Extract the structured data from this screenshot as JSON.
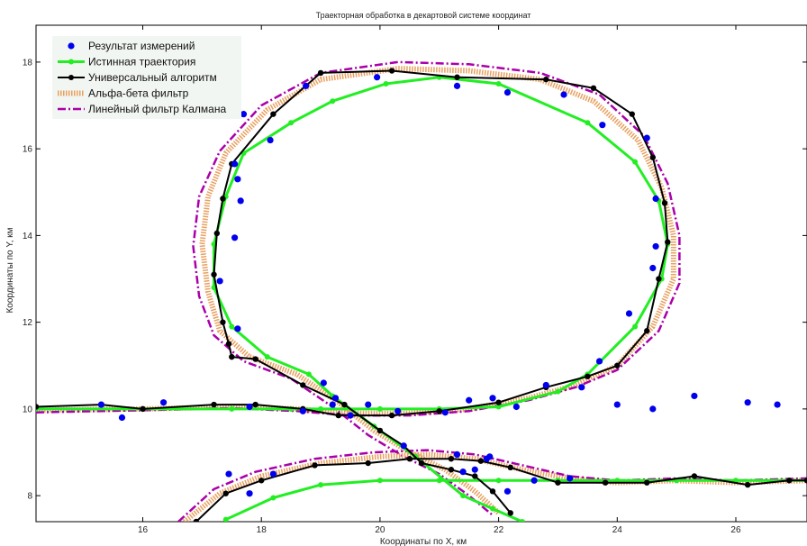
{
  "chart_data": {
    "type": "line",
    "title": "Траекторная обработка в декартовой системе координат",
    "xlabel": "Координаты по X, км",
    "ylabel": "Координаты по Y, км",
    "xlim": [
      14.2,
      27.2
    ],
    "ylim": [
      7.4,
      18.85
    ],
    "xticks": [
      16,
      18,
      20,
      22,
      24,
      26
    ],
    "yticks": [
      8,
      10,
      12,
      14,
      16,
      18
    ],
    "grid": false,
    "legend": "top-left",
    "series": [
      {
        "name": "Результат измерений",
        "style": "markers",
        "color": "#0000ee",
        "x": [
          15.3,
          15.65,
          16.35,
          17.8,
          18.7,
          19.2,
          19.5,
          19.8,
          20.3,
          21.1,
          21.5,
          21.9,
          22.3,
          22.8,
          23.4,
          24.0,
          24.6,
          25.3,
          26.2,
          26.7,
          17.6,
          17.3,
          17.55,
          17.65,
          17.6,
          17.55,
          17.7,
          18.15,
          18.75,
          19.95,
          21.3,
          22.15,
          23.1,
          23.75,
          24.5,
          24.65,
          24.65,
          24.6,
          24.2,
          23.7,
          19.05,
          19.25,
          20.4,
          21.4,
          21.3,
          21.6,
          21.85,
          21.8,
          22.15,
          17.45,
          17.8,
          18.2,
          22.6,
          23.2
        ],
        "y": [
          10.1,
          9.8,
          10.15,
          10.05,
          9.95,
          10.1,
          9.85,
          10.1,
          9.95,
          9.92,
          10.2,
          10.25,
          10.05,
          10.55,
          10.5,
          10.1,
          10.0,
          10.3,
          10.15,
          10.1,
          11.85,
          12.95,
          13.95,
          14.8,
          15.3,
          15.65,
          16.8,
          16.2,
          17.45,
          17.65,
          17.45,
          17.3,
          17.25,
          16.55,
          16.25,
          14.85,
          13.75,
          13.25,
          12.2,
          11.1,
          10.6,
          10.25,
          9.15,
          8.55,
          8.95,
          8.6,
          8.9,
          8.85,
          8.1,
          8.5,
          8.05,
          8.5,
          8.35,
          8.4
        ]
      },
      {
        "name": "Истинная траектория",
        "style": "line-markers",
        "color": "#22ee22",
        "x": [
          14.2,
          16.0,
          17.5,
          18.5,
          19.0,
          20.0,
          21.0,
          22.0,
          23.0,
          23.5,
          24.3,
          24.75,
          24.85,
          24.7,
          24.3,
          23.5,
          22.0,
          21.0,
          20.1,
          19.2,
          18.5,
          17.7,
          17.4,
          17.2,
          17.2,
          17.5,
          18.1,
          18.8,
          19.2,
          19.9,
          20.6,
          21.4,
          21.9,
          22.4
        ],
        "y": [
          10.0,
          10.0,
          10.0,
          10.0,
          10.0,
          10.0,
          10.0,
          10.05,
          10.4,
          10.8,
          11.9,
          13.0,
          13.8,
          14.8,
          15.7,
          16.6,
          17.5,
          17.65,
          17.5,
          17.1,
          16.6,
          15.9,
          14.9,
          13.8,
          12.8,
          11.9,
          11.2,
          10.8,
          10.3,
          9.6,
          8.9,
          8.0,
          7.7,
          7.4
        ]
      },
      {
        "name": "Универсальный алгоритм",
        "style": "line-markers",
        "color": "#000000",
        "x": [
          14.2,
          15.3,
          16.0,
          17.2,
          17.9,
          18.7,
          19.3,
          20.2,
          21.0,
          22.0,
          22.8,
          23.5,
          24.0,
          24.5,
          24.7,
          24.85,
          24.8,
          24.6,
          24.25,
          23.6,
          22.8,
          21.3,
          20.2,
          19.0,
          18.2,
          17.5,
          17.35,
          17.25,
          17.2,
          17.35,
          17.45,
          17.5,
          17.9,
          18.7,
          19.4,
          20.0,
          20.4,
          20.7,
          21.2,
          21.6,
          21.9,
          22.2
        ],
        "y": [
          10.05,
          10.1,
          10.0,
          10.1,
          10.1,
          10.0,
          9.85,
          9.85,
          9.95,
          10.15,
          10.5,
          10.75,
          11.0,
          11.8,
          13.0,
          13.85,
          14.75,
          15.8,
          16.8,
          17.4,
          17.6,
          17.65,
          17.8,
          17.75,
          16.8,
          15.65,
          14.85,
          14.05,
          13.1,
          12.0,
          11.5,
          11.2,
          11.15,
          10.55,
          10.1,
          9.5,
          9.15,
          8.75,
          8.6,
          8.45,
          8.1,
          7.6
        ]
      },
      {
        "name": "Альфа-бета фильтр",
        "style": "dotted-thick",
        "color": "#e8a060",
        "x": [
          14.2,
          16.0,
          17.5,
          18.6,
          19.5,
          20.5,
          21.5,
          22.5,
          23.3,
          24.0,
          24.6,
          24.95,
          24.95,
          24.75,
          24.35,
          23.6,
          22.7,
          21.5,
          20.3,
          19.0,
          18.1,
          17.4,
          17.1,
          17.0,
          17.1,
          17.3,
          17.8,
          18.6,
          19.3,
          19.9,
          20.5,
          21.1,
          21.6,
          22.0
        ],
        "y": [
          9.97,
          10.0,
          10.05,
          10.0,
          9.9,
          9.9,
          10.0,
          10.25,
          10.55,
          11.0,
          11.9,
          13.0,
          14.0,
          15.1,
          16.2,
          17.1,
          17.6,
          17.8,
          17.85,
          17.6,
          16.9,
          15.9,
          14.9,
          13.8,
          12.7,
          11.8,
          11.2,
          10.8,
          10.15,
          9.5,
          9.0,
          8.6,
          8.1,
          7.6
        ]
      },
      {
        "name": "Линейный фильтр Калмана",
        "style": "dash-dot",
        "color": "#aa00aa",
        "x": [
          14.2,
          16.0,
          17.5,
          18.6,
          19.5,
          20.5,
          21.5,
          22.5,
          23.3,
          24.0,
          24.7,
          25.05,
          25.05,
          24.85,
          24.45,
          23.7,
          22.7,
          21.5,
          20.3,
          19.0,
          18.0,
          17.3,
          16.95,
          16.85,
          16.95,
          17.2,
          17.7,
          18.5,
          19.2,
          19.8,
          20.4,
          21.0,
          21.5,
          21.9
        ],
        "y": [
          9.92,
          9.97,
          10.02,
          9.95,
          9.85,
          9.85,
          9.95,
          10.2,
          10.5,
          10.9,
          11.8,
          12.9,
          14.0,
          15.2,
          16.3,
          17.25,
          17.75,
          17.95,
          18.0,
          17.75,
          17.0,
          15.95,
          14.9,
          13.75,
          12.6,
          11.7,
          11.1,
          10.7,
          10.05,
          9.4,
          8.9,
          8.5,
          8.0,
          7.55
        ]
      },
      {
        "name": "",
        "style": "line-markers",
        "color": "#22ee22",
        "x": [
          17.4,
          18.2,
          19.0,
          20.0,
          21.0,
          22.0,
          23.0,
          24.0,
          25.0,
          26.0,
          27.2
        ],
        "y": [
          7.45,
          7.95,
          8.25,
          8.35,
          8.35,
          8.35,
          8.35,
          8.35,
          8.35,
          8.35,
          8.35
        ]
      },
      {
        "name": "",
        "style": "line-markers",
        "color": "#000000",
        "x": [
          16.9,
          17.4,
          18.0,
          18.9,
          19.8,
          20.5,
          21.2,
          21.7,
          22.2,
          23.0,
          23.8,
          24.5,
          25.3,
          26.2,
          26.9,
          27.2
        ],
        "y": [
          7.4,
          8.05,
          8.35,
          8.7,
          8.75,
          8.85,
          8.85,
          8.8,
          8.65,
          8.3,
          8.3,
          8.3,
          8.45,
          8.25,
          8.35,
          8.35
        ]
      },
      {
        "name": "",
        "style": "dotted-thick",
        "color": "#e8a060",
        "x": [
          16.7,
          17.3,
          18.0,
          19.0,
          20.0,
          20.8,
          21.6,
          22.4,
          23.2,
          24.0,
          25.0,
          26.0,
          27.2
        ],
        "y": [
          7.4,
          8.05,
          8.45,
          8.75,
          8.9,
          8.95,
          8.85,
          8.6,
          8.4,
          8.3,
          8.35,
          8.3,
          8.35
        ]
      },
      {
        "name": "",
        "style": "dash-dot",
        "color": "#aa00aa",
        "x": [
          16.6,
          17.2,
          17.9,
          18.9,
          19.9,
          20.8,
          21.6,
          22.4,
          23.2,
          24.0,
          25.0,
          26.0,
          27.2
        ],
        "y": [
          7.4,
          8.15,
          8.55,
          8.85,
          9.0,
          9.05,
          8.95,
          8.7,
          8.45,
          8.35,
          8.4,
          8.35,
          8.4
        ]
      }
    ]
  }
}
